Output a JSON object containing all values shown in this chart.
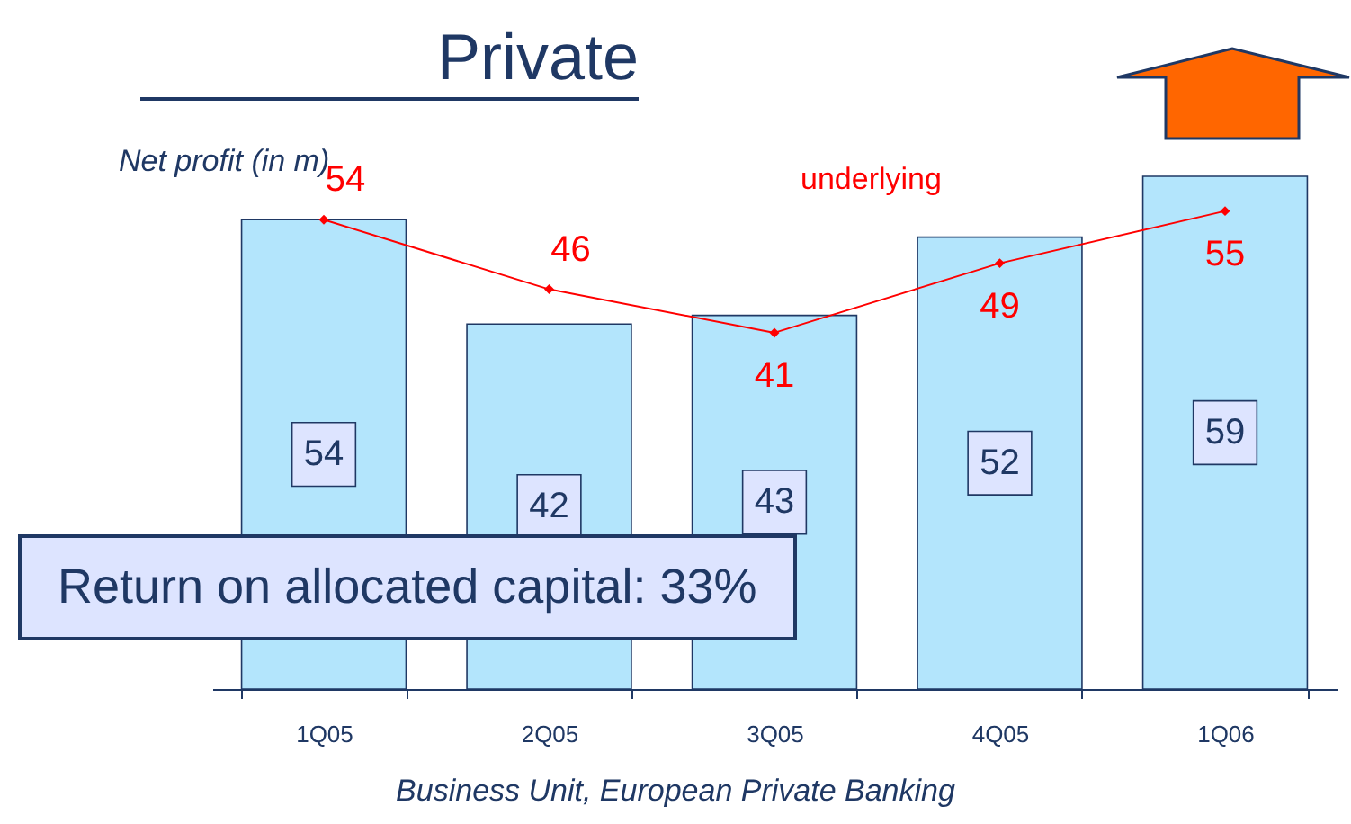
{
  "chart_data": {
    "type": "bar",
    "title": "Private",
    "ylabel": "Net profit (in m)",
    "categories": [
      "1Q05",
      "2Q05",
      "3Q05",
      "4Q05",
      "1Q06"
    ],
    "series": [
      {
        "color": "#b3e5fc",
        "values": [
          54,
          42,
          43,
          52,
          59
        ]
      },
      {
        "type": "line",
        "name": "underlying",
        "color": "#ff0000",
        "values": [
          54,
          46,
          41,
          49,
          55
        ]
      }
    ],
    "data_labels": true,
    "marker": "diamond",
    "annotations": [
      "Return on allocated capital: 33%",
      "Business Unit, European Private Banking"
    ]
  }
}
